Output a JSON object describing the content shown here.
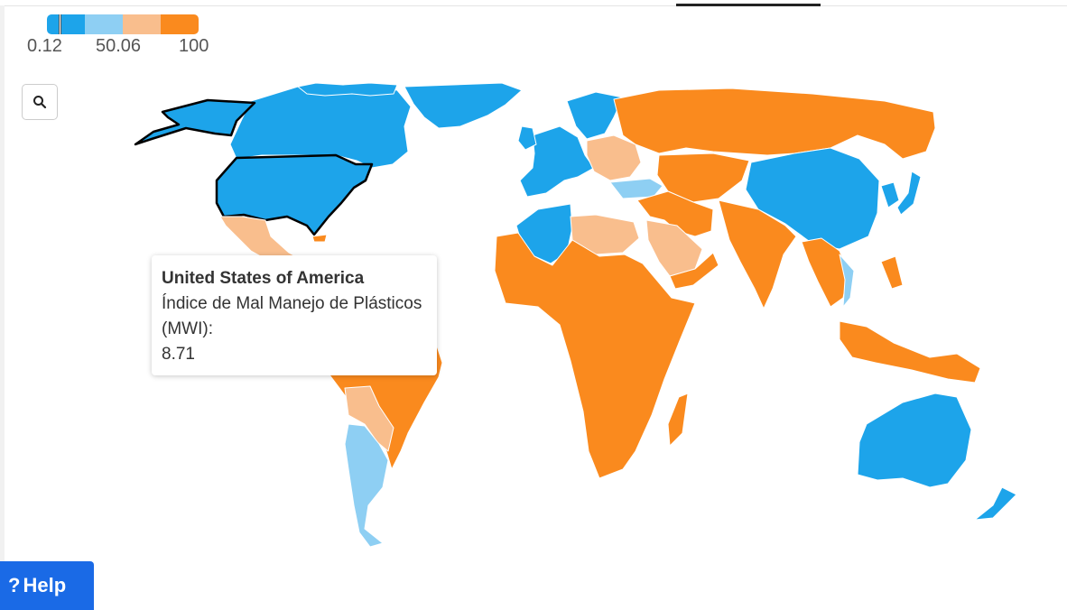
{
  "legend": {
    "colors": [
      "#1da4ea",
      "#8ecff3",
      "#f9be8d",
      "#fa8a1e"
    ],
    "ticks": [
      "0.12",
      "50.06",
      "100"
    ]
  },
  "zoom": {
    "icon": "search-icon"
  },
  "map": {
    "metric": "Índice de Mal Manejo de Plásticos (MWI)",
    "colors": {
      "low": "#1da4ea",
      "low_mid": "#8ecff3",
      "high_mid": "#f9be8d",
      "high": "#fa8a1e",
      "border": "#ffffff",
      "highlight": "#000000"
    },
    "highlighted_country": "United States of America"
  },
  "tooltip": {
    "title": "United States of America",
    "metric_label": "Índice de Mal Manejo de Plásticos (MWI):",
    "value": "8.71"
  },
  "help": {
    "icon": "question-icon",
    "label": "Help"
  }
}
